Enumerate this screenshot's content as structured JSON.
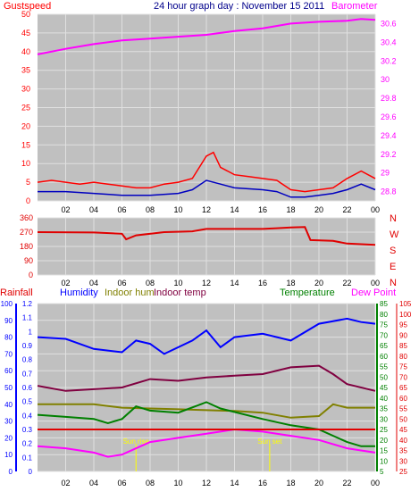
{
  "title": "24 hour graph day : November 15 2011",
  "colors": {
    "background": "#ffffff",
    "plot_bg": "#c0c0c0",
    "grid": "#e0e0e0",
    "gust": "#ff0000",
    "wind_avg": "#0000c0",
    "barometer": "#ff00ff",
    "direction": "#e00000",
    "rainfall": "#e00000",
    "humidity": "#0000ff",
    "indoor_hum": "#808000",
    "indoor_temp": "#800040",
    "temperature": "#008000",
    "dewpoint": "#ff00ff",
    "sun": "#ffff00"
  },
  "chart_data": [
    {
      "type": "line",
      "name": "wind-and-barometer",
      "x_tick_labels": [
        "02",
        "04",
        "06",
        "08",
        "10",
        "12",
        "14",
        "16",
        "18",
        "20",
        "22",
        "00"
      ],
      "left_axis_label": "Gustspeed",
      "right_axis_label": "Barometer",
      "left_ticks": [
        "0",
        "5",
        "10",
        "15",
        "20",
        "25",
        "30",
        "35",
        "40",
        "45",
        "50"
      ],
      "right_ticks": [
        "28.8",
        "29",
        "29.2",
        "29.4",
        "29.6",
        "29.8",
        "30",
        "30.2",
        "30.4",
        "30.6"
      ],
      "left_range": [
        0,
        50
      ],
      "right_range": [
        28.7,
        30.7
      ],
      "series": [
        {
          "name": "Gustspeed",
          "axis": "left",
          "color": "#ff0000",
          "points": [
            [
              0,
              5
            ],
            [
              1,
              5.5
            ],
            [
              2,
              5
            ],
            [
              3,
              4.5
            ],
            [
              4,
              5
            ],
            [
              5,
              4.5
            ],
            [
              6,
              4
            ],
            [
              7,
              3.5
            ],
            [
              8,
              3.5
            ],
            [
              9,
              4.5
            ],
            [
              10,
              5
            ],
            [
              11,
              6
            ],
            [
              12,
              12
            ],
            [
              12.5,
              13
            ],
            [
              13,
              9
            ],
            [
              14,
              7
            ],
            [
              15,
              6.5
            ],
            [
              16,
              6
            ],
            [
              17,
              5.5
            ],
            [
              18,
              3
            ],
            [
              19,
              2.5
            ],
            [
              20,
              3
            ],
            [
              21,
              3.5
            ],
            [
              22,
              6
            ],
            [
              23,
              8
            ],
            [
              24,
              6
            ]
          ]
        },
        {
          "name": "Wind average",
          "axis": "left",
          "color": "#0000c0",
          "points": [
            [
              0,
              2.5
            ],
            [
              2,
              2.5
            ],
            [
              4,
              2
            ],
            [
              6,
              1.5
            ],
            [
              8,
              1.5
            ],
            [
              10,
              2
            ],
            [
              11,
              3
            ],
            [
              12,
              5.5
            ],
            [
              13,
              4.5
            ],
            [
              14,
              3.5
            ],
            [
              16,
              3
            ],
            [
              17,
              2.5
            ],
            [
              18,
              1
            ],
            [
              19,
              1
            ],
            [
              20,
              1.5
            ],
            [
              21,
              2
            ],
            [
              22,
              3
            ],
            [
              23,
              4.5
            ],
            [
              24,
              3
            ]
          ]
        },
        {
          "name": "Barometer",
          "axis": "right",
          "color": "#ff00ff",
          "points": [
            [
              0,
              30.27
            ],
            [
              2,
              30.33
            ],
            [
              4,
              30.38
            ],
            [
              6,
              30.42
            ],
            [
              8,
              30.44
            ],
            [
              10,
              30.46
            ],
            [
              12,
              30.48
            ],
            [
              14,
              30.52
            ],
            [
              16,
              30.55
            ],
            [
              18,
              30.6
            ],
            [
              20,
              30.62
            ],
            [
              22,
              30.63
            ],
            [
              23,
              30.65
            ],
            [
              24,
              30.64
            ]
          ]
        }
      ]
    },
    {
      "type": "line",
      "name": "wind-direction",
      "left_ticks": [
        "0",
        "90",
        "180",
        "270",
        "360"
      ],
      "left_range": [
        0,
        360
      ],
      "right_compass": [
        "N",
        "W",
        "S",
        "E",
        "N"
      ],
      "series": [
        {
          "name": "Direction",
          "axis": "left",
          "color": "#e00000",
          "points": [
            [
              0,
              270
            ],
            [
              4,
              268
            ],
            [
              6,
              260
            ],
            [
              6.3,
              225
            ],
            [
              7,
              250
            ],
            [
              9,
              270
            ],
            [
              11,
              275
            ],
            [
              12,
              290
            ],
            [
              16,
              290
            ],
            [
              17,
              295
            ],
            [
              18,
              300
            ],
            [
              19,
              302
            ],
            [
              19.4,
              220
            ],
            [
              21,
              215
            ],
            [
              22,
              198
            ],
            [
              24,
              190
            ]
          ]
        }
      ]
    },
    {
      "type": "line",
      "name": "humidity-and-temperature",
      "legend": [
        {
          "label": "Rainfall",
          "color": "#e00000"
        },
        {
          "label": "Humidity",
          "color": "#0000ff"
        },
        {
          "label": "Indoor hum",
          "color": "#808000"
        },
        {
          "label": "Indoor temp",
          "color": "#800040"
        },
        {
          "label": "Temperature",
          "color": "#008000"
        },
        {
          "label": "Dew Point",
          "color": "#ff00ff"
        }
      ],
      "humidity_ticks": [
        "0",
        "10",
        "20",
        "30",
        "40",
        "50",
        "60",
        "70",
        "80",
        "90",
        "100"
      ],
      "rain_ticks": [
        "0",
        "0.1",
        "0.2",
        "0.3",
        "0.4",
        "0.5",
        "0.6",
        "0.7",
        "0.8",
        "0.9",
        "1",
        "1.1",
        "1.2"
      ],
      "temp_ticks": [
        "5",
        "10",
        "15",
        "20",
        "25",
        "30",
        "35",
        "40",
        "45",
        "50",
        "55",
        "60",
        "65",
        "70",
        "75",
        "80",
        "85"
      ],
      "dew_ticks": [
        "25",
        "30",
        "35",
        "40",
        "45",
        "50",
        "55",
        "60",
        "65",
        "70",
        "75",
        "80",
        "85",
        "90",
        "95",
        "100",
        "105"
      ],
      "sun_labels": [
        {
          "text": "Sun rise",
          "hour": 7
        },
        {
          "text": "Sun set",
          "hour": 16.5
        }
      ],
      "series": [
        {
          "name": "Humidity",
          "color": "#0000ff",
          "points": [
            [
              0,
              80
            ],
            [
              2,
              79
            ],
            [
              4,
              73
            ],
            [
              6,
              71
            ],
            [
              7,
              78
            ],
            [
              8,
              76
            ],
            [
              9,
              70
            ],
            [
              11,
              78
            ],
            [
              12,
              84
            ],
            [
              13,
              74
            ],
            [
              14,
              80
            ],
            [
              16,
              82
            ],
            [
              18,
              78
            ],
            [
              20,
              88
            ],
            [
              22,
              91
            ],
            [
              23,
              89
            ],
            [
              24,
              88
            ]
          ]
        },
        {
          "name": "Indoor temp",
          "color": "#800040",
          "points": [
            [
              0,
              51
            ],
            [
              2,
              48
            ],
            [
              4,
              49
            ],
            [
              6,
              50
            ],
            [
              8,
              55
            ],
            [
              10,
              54
            ],
            [
              12,
              56
            ],
            [
              14,
              57
            ],
            [
              16,
              58
            ],
            [
              18,
              62
            ],
            [
              20,
              63
            ],
            [
              21,
              58
            ],
            [
              22,
              52
            ],
            [
              24,
              48
            ]
          ]
        },
        {
          "name": "Indoor hum",
          "color": "#808000",
          "points": [
            [
              0,
              40
            ],
            [
              4,
              40
            ],
            [
              6,
              38
            ],
            [
              10,
              37
            ],
            [
              14,
              36
            ],
            [
              16,
              35
            ],
            [
              18,
              32
            ],
            [
              20,
              33
            ],
            [
              21,
              40
            ],
            [
              22,
              38
            ],
            [
              24,
              38
            ]
          ]
        },
        {
          "name": "Temperature",
          "color": "#008000",
          "points": [
            [
              0,
              32
            ],
            [
              2,
              31
            ],
            [
              4,
              30
            ],
            [
              5,
              28
            ],
            [
              6,
              30
            ],
            [
              7,
              36
            ],
            [
              8,
              34
            ],
            [
              10,
              33
            ],
            [
              12,
              38
            ],
            [
              13,
              35
            ],
            [
              16,
              30
            ],
            [
              18,
              27
            ],
            [
              20,
              25
            ],
            [
              22,
              19
            ],
            [
              23,
              17
            ],
            [
              24,
              17
            ]
          ]
        },
        {
          "name": "Dew Point",
          "color": "#ff00ff",
          "points": [
            [
              0,
              17
            ],
            [
              2,
              16
            ],
            [
              4,
              14
            ],
            [
              5,
              12
            ],
            [
              6,
              13
            ],
            [
              8,
              19
            ],
            [
              10,
              21
            ],
            [
              12,
              23
            ],
            [
              14,
              25
            ],
            [
              16,
              24
            ],
            [
              18,
              22
            ],
            [
              20,
              20
            ],
            [
              22,
              16
            ],
            [
              24,
              14
            ]
          ]
        },
        {
          "name": "Rainfall",
          "color": "#e00000",
          "points": [
            [
              0,
              0.3
            ],
            [
              24,
              0.3
            ]
          ]
        }
      ]
    }
  ]
}
